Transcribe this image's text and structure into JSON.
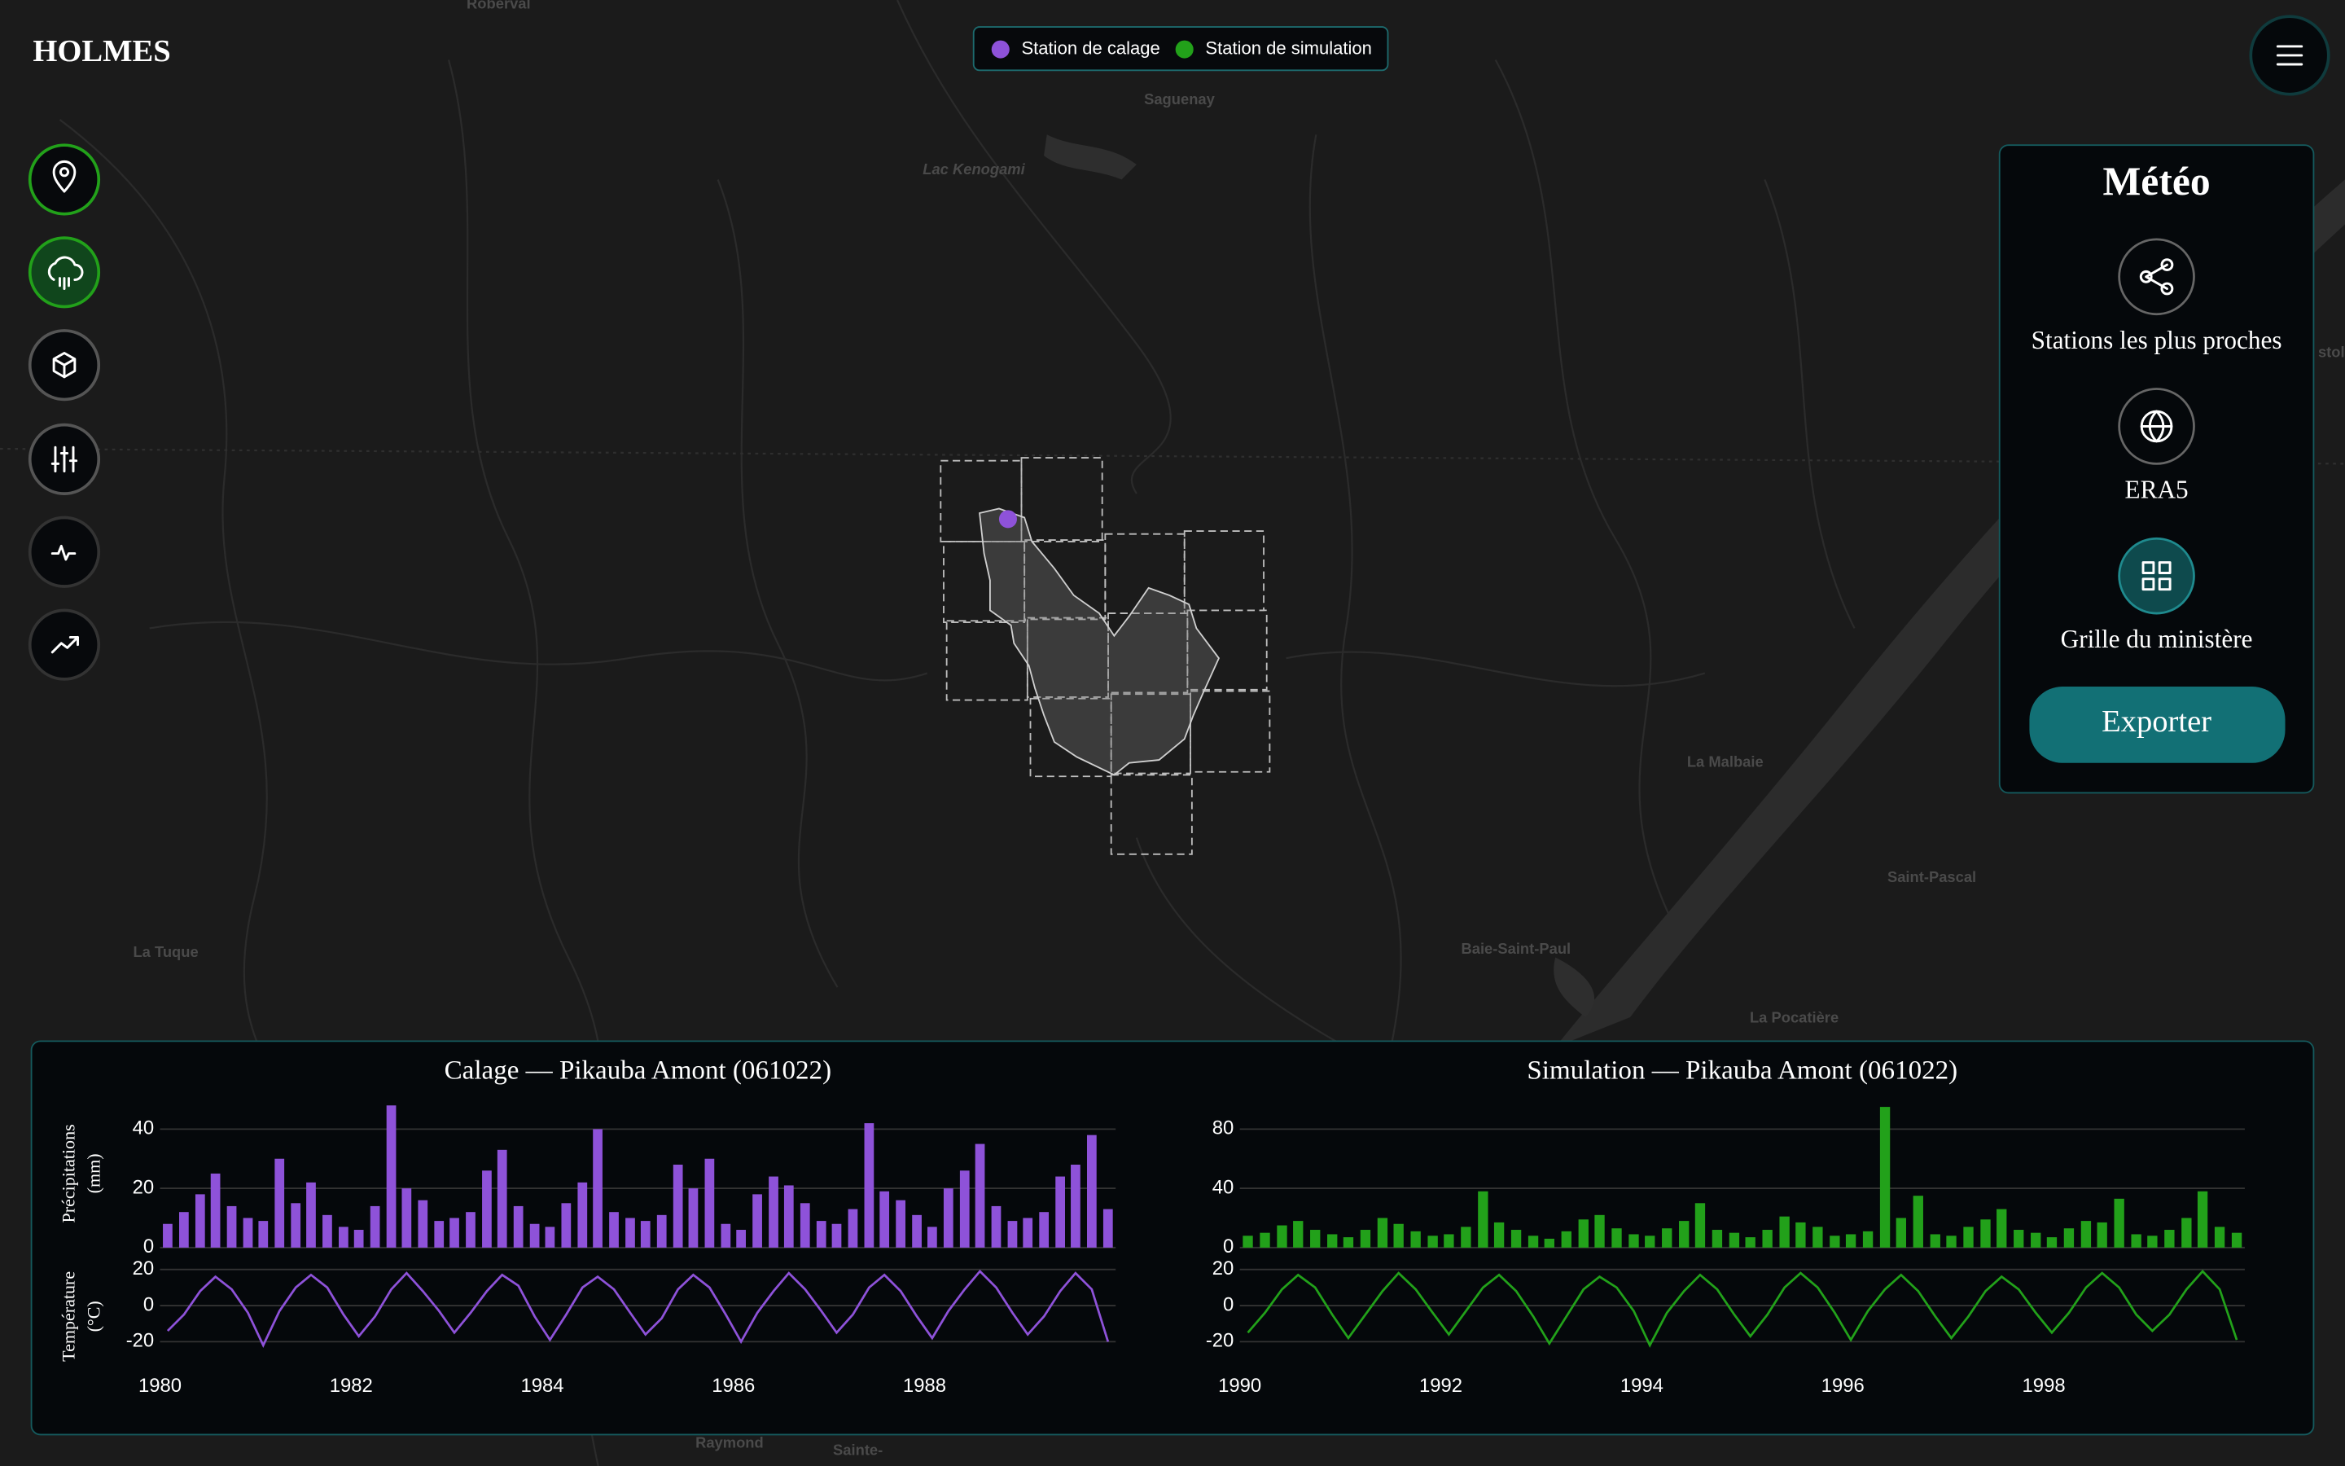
{
  "header": {
    "title": "HOLMES"
  },
  "legend": {
    "items": [
      "Station de calage",
      "Station de simulation"
    ]
  },
  "map": {
    "labels": [
      "Roberval",
      "Saguenay",
      "Lac Kenogami",
      "La Malbaie",
      "Saint-Pascal",
      "La Tuque",
      "Baie-Saint-Paul",
      "La Pocatière",
      "Raymond",
      "Sainte-",
      "stola"
    ]
  },
  "panel": {
    "title": "Météo",
    "options": [
      "Stations les plus proches",
      "ERA5",
      "Grille du ministère"
    ],
    "button": "Exporter"
  },
  "chart_data": [
    {
      "type": "bar",
      "title": "Calage — Pikauba Amont (061022)",
      "ylabel": [
        "Précipitations",
        "(mm)"
      ],
      "color": "#8e52d9",
      "x": [
        1980.08,
        1980.25,
        1980.42,
        1980.58,
        1980.75,
        1980.92,
        1981.08,
        1981.25,
        1981.42,
        1981.58,
        1981.75,
        1981.92,
        1982.08,
        1982.25,
        1982.42,
        1982.58,
        1982.75,
        1982.92,
        1983.08,
        1983.25,
        1983.42,
        1983.58,
        1983.75,
        1983.92,
        1984.08,
        1984.25,
        1984.42,
        1984.58,
        1984.75,
        1984.92,
        1985.08,
        1985.25,
        1985.42,
        1985.58,
        1985.75,
        1985.92,
        1986.08,
        1986.25,
        1986.42,
        1986.58,
        1986.75,
        1986.92,
        1987.08,
        1987.25,
        1987.42,
        1987.58,
        1987.75,
        1987.92,
        1988.08,
        1988.25,
        1988.42,
        1988.58,
        1988.75,
        1988.92,
        1989.08,
        1989.25,
        1989.42,
        1989.58,
        1989.75,
        1989.92
      ],
      "values": [
        8,
        12,
        18,
        25,
        14,
        10,
        9,
        30,
        15,
        22,
        11,
        7,
        6,
        14,
        48,
        20,
        16,
        9,
        10,
        12,
        26,
        33,
        14,
        8,
        7,
        15,
        22,
        40,
        12,
        10,
        9,
        11,
        28,
        20,
        30,
        8,
        6,
        18,
        24,
        21,
        15,
        9,
        8,
        13,
        42,
        19,
        16,
        11,
        7,
        20,
        26,
        35,
        14,
        9,
        10,
        12,
        24,
        28,
        38,
        13
      ],
      "xlim": [
        1980,
        1990
      ],
      "ylim": [
        0,
        50
      ],
      "yticks": [
        0,
        20,
        40
      ],
      "grid": true
    },
    {
      "type": "line",
      "ylabel": [
        "Température",
        "(°C)"
      ],
      "color": "#8e52d9",
      "x": [
        1980.08,
        1980.25,
        1980.42,
        1980.58,
        1980.75,
        1980.92,
        1981.08,
        1981.25,
        1981.42,
        1981.58,
        1981.75,
        1981.92,
        1982.08,
        1982.25,
        1982.42,
        1982.58,
        1982.75,
        1982.92,
        1983.08,
        1983.25,
        1983.42,
        1983.58,
        1983.75,
        1983.92,
        1984.08,
        1984.25,
        1984.42,
        1984.58,
        1984.75,
        1984.92,
        1985.08,
        1985.25,
        1985.42,
        1985.58,
        1985.75,
        1985.92,
        1986.08,
        1986.25,
        1986.42,
        1986.58,
        1986.75,
        1986.92,
        1987.08,
        1987.25,
        1987.42,
        1987.58,
        1987.75,
        1987.92,
        1988.08,
        1988.25,
        1988.42,
        1988.58,
        1988.75,
        1988.92,
        1989.08,
        1989.25,
        1989.42,
        1989.58,
        1989.75,
        1989.92
      ],
      "values": [
        -14,
        -5,
        8,
        16,
        9,
        -4,
        -22,
        -3,
        10,
        17,
        10,
        -5,
        -17,
        -6,
        9,
        18,
        8,
        -3,
        -15,
        -4,
        8,
        17,
        11,
        -6,
        -19,
        -5,
        10,
        16,
        9,
        -4,
        -16,
        -7,
        9,
        17,
        10,
        -5,
        -20,
        -4,
        8,
        18,
        9,
        -3,
        -15,
        -5,
        10,
        17,
        8,
        -6,
        -18,
        -3,
        9,
        19,
        10,
        -4,
        -16,
        -6,
        8,
        18,
        9,
        -20
      ],
      "xlim": [
        1980,
        1990
      ],
      "ylim": [
        -35,
        23
      ],
      "yticks": [
        -20,
        0,
        20
      ],
      "xticks": [
        1980,
        1982,
        1984,
        1986,
        1988
      ],
      "grid": true
    },
    {
      "type": "bar",
      "title": "Simulation — Pikauba Amont (061022)",
      "color": "#22a11a",
      "x": [
        1990.08,
        1990.25,
        1990.42,
        1990.58,
        1990.75,
        1990.92,
        1991.08,
        1991.25,
        1991.42,
        1991.58,
        1991.75,
        1991.92,
        1992.08,
        1992.25,
        1992.42,
        1992.58,
        1992.75,
        1992.92,
        1993.08,
        1993.25,
        1993.42,
        1993.58,
        1993.75,
        1993.92,
        1994.08,
        1994.25,
        1994.42,
        1994.58,
        1994.75,
        1994.92,
        1995.08,
        1995.25,
        1995.42,
        1995.58,
        1995.75,
        1995.92,
        1996.08,
        1996.25,
        1996.42,
        1996.58,
        1996.75,
        1996.92,
        1997.08,
        1997.25,
        1997.42,
        1997.58,
        1997.75,
        1997.92,
        1998.08,
        1998.25,
        1998.42,
        1998.58,
        1998.75,
        1998.92,
        1999.08,
        1999.25,
        1999.42,
        1999.58,
        1999.75,
        1999.92
      ],
      "values": [
        8,
        10,
        15,
        18,
        12,
        9,
        7,
        12,
        20,
        16,
        11,
        8,
        9,
        14,
        38,
        17,
        12,
        8,
        6,
        11,
        19,
        22,
        13,
        9,
        8,
        13,
        18,
        30,
        12,
        10,
        7,
        12,
        21,
        17,
        14,
        8,
        9,
        11,
        95,
        20,
        35,
        9,
        8,
        14,
        19,
        26,
        12,
        10,
        7,
        13,
        18,
        17,
        33,
        9,
        8,
        12,
        20,
        38,
        14,
        10
      ],
      "xlim": [
        1990,
        2000
      ],
      "ylim": [
        0,
        100
      ],
      "yticks": [
        0,
        40,
        80
      ],
      "grid": true
    },
    {
      "type": "line",
      "color": "#22a11a",
      "x": [
        1990.08,
        1990.25,
        1990.42,
        1990.58,
        1990.75,
        1990.92,
        1991.08,
        1991.25,
        1991.42,
        1991.58,
        1991.75,
        1991.92,
        1992.08,
        1992.25,
        1992.42,
        1992.58,
        1992.75,
        1992.92,
        1993.08,
        1993.25,
        1993.42,
        1993.58,
        1993.75,
        1993.92,
        1994.08,
        1994.25,
        1994.42,
        1994.58,
        1994.75,
        1994.92,
        1995.08,
        1995.25,
        1995.42,
        1995.58,
        1995.75,
        1995.92,
        1996.08,
        1996.25,
        1996.42,
        1996.58,
        1996.75,
        1996.92,
        1997.08,
        1997.25,
        1997.42,
        1997.58,
        1997.75,
        1997.92,
        1998.08,
        1998.25,
        1998.42,
        1998.58,
        1998.75,
        1998.92,
        1999.08,
        1999.25,
        1999.42,
        1999.58,
        1999.75,
        1999.92
      ],
      "values": [
        -15,
        -4,
        9,
        17,
        10,
        -5,
        -18,
        -5,
        8,
        18,
        9,
        -4,
        -16,
        -3,
        10,
        17,
        8,
        -6,
        -21,
        -6,
        9,
        16,
        10,
        -3,
        -22,
        -4,
        8,
        17,
        9,
        -5,
        -17,
        -5,
        10,
        18,
        10,
        -4,
        -19,
        -3,
        9,
        17,
        8,
        -6,
        -18,
        -6,
        8,
        16,
        9,
        -4,
        -15,
        -4,
        10,
        18,
        10,
        -5,
        -14,
        -5,
        9,
        19,
        9,
        -19
      ],
      "xlim": [
        1990,
        2000
      ],
      "ylim": [
        -35,
        23
      ],
      "yticks": [
        -20,
        0,
        20
      ],
      "xticks": [
        1990,
        1992,
        1994,
        1996,
        1998
      ],
      "grid": true
    }
  ]
}
